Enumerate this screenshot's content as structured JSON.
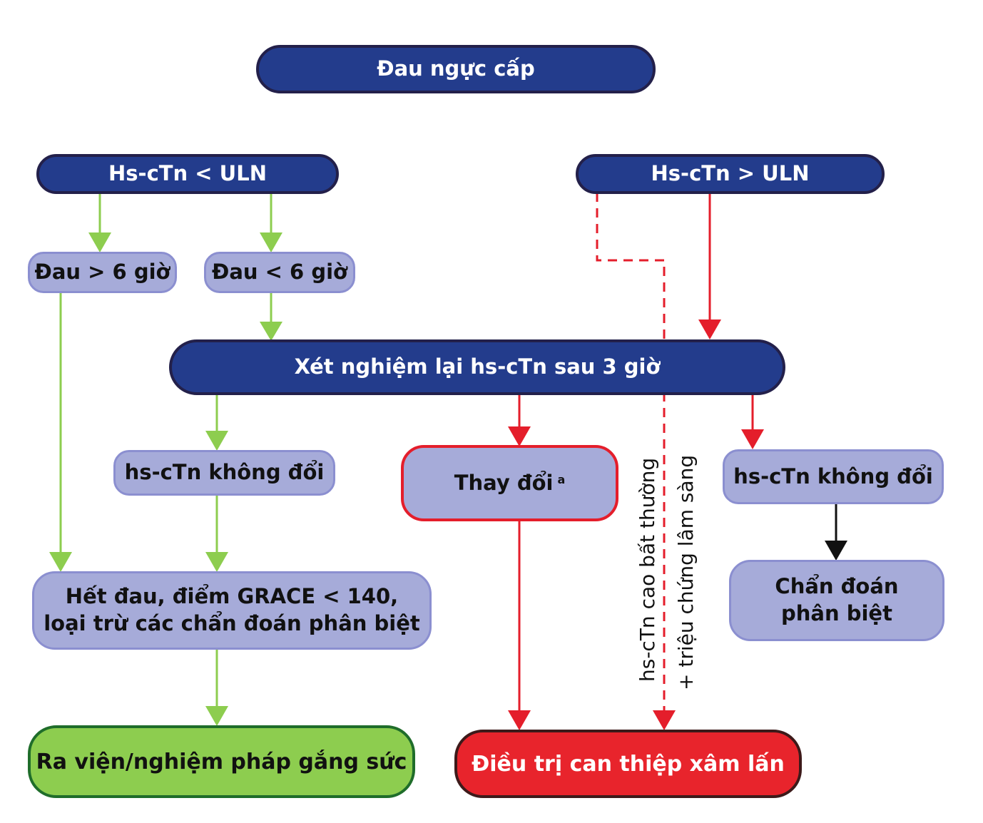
{
  "nodes": {
    "chest_pain": "Đau ngực cấp",
    "hs_ctn_below_uln": "Hs-cTn < ULN",
    "hs_ctn_above_uln": "Hs-cTn > ULN",
    "pain_over_6h": "Đau > 6 giờ",
    "pain_under_6h": "Đau < 6 giờ",
    "retest_3h": "Xét nghiệm lại hs-cTn sau 3 giờ",
    "unchanged_left": "hs-cTn không đổi",
    "changed": "Thay đổi",
    "changed_superscript": "a",
    "unchanged_right": "hs-cTn không đổi",
    "no_pain_grace_line1": "Hết đau, điểm GRACE < 140,",
    "no_pain_grace_line2": "loại trừ các chẩn đoán phân biệt",
    "differential_line1": "Chẩn đoán",
    "differential_line2": "phân biệt",
    "discharge": "Ra viện/nghiệm pháp gắng sức",
    "invasive": "Điều trị can thiệp xâm lấn"
  },
  "edge_labels": {
    "abnormal_hs_ctn": "hs-cTn cao bất thường",
    "clinical_symptoms": "+ triệu chứng lâm sàng"
  },
  "colors": {
    "dark_box": "#233c8c",
    "light_box": "#a6abd9",
    "green_box": "#8dcd4f",
    "red_box": "#e8242c",
    "green_arrow": "#8dcd4f",
    "red_arrow": "#e41e2b",
    "black_arrow": "#111111"
  }
}
